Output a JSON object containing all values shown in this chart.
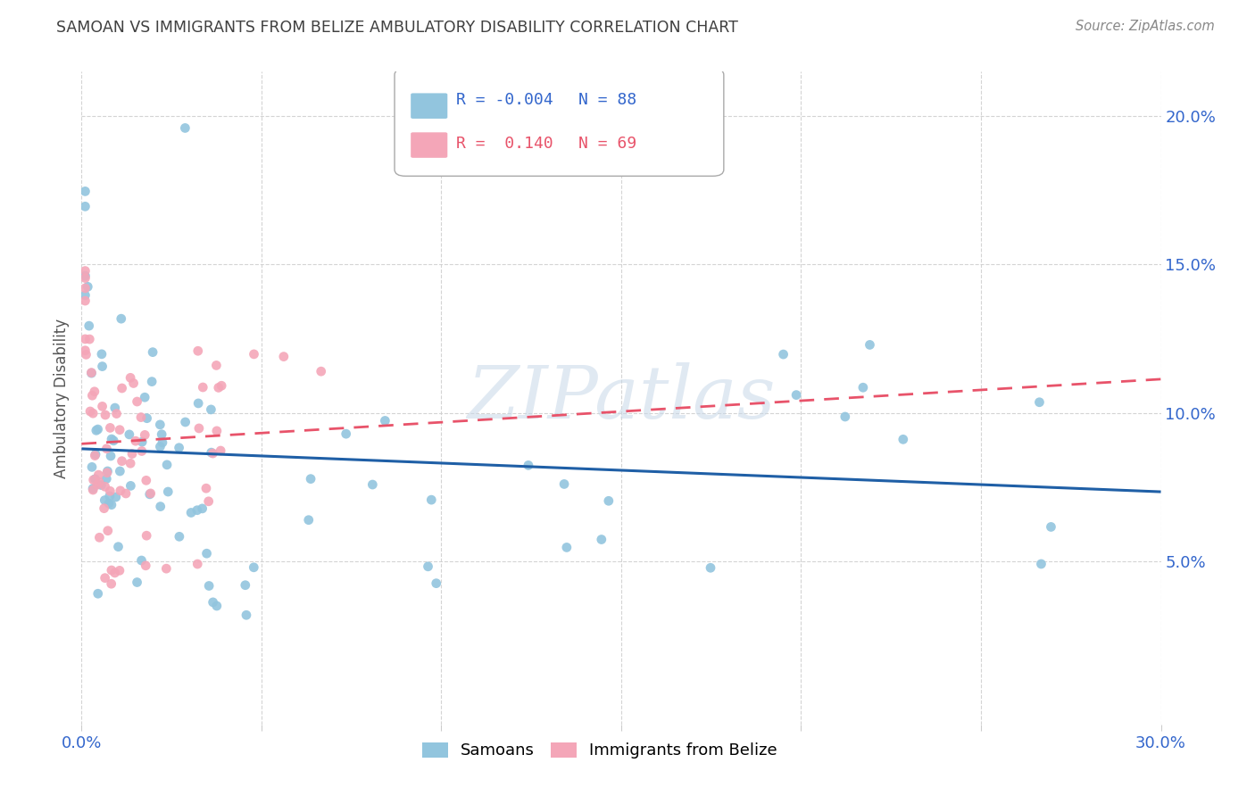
{
  "title": "SAMOAN VS IMMIGRANTS FROM BELIZE AMBULATORY DISABILITY CORRELATION CHART",
  "source": "Source: ZipAtlas.com",
  "ylabel": "Ambulatory Disability",
  "xlim": [
    0.0,
    0.3
  ],
  "ylim": [
    -0.005,
    0.215
  ],
  "y_ticks": [
    0.05,
    0.1,
    0.15,
    0.2
  ],
  "y_tick_labels": [
    "5.0%",
    "10.0%",
    "15.0%",
    "20.0%"
  ],
  "x_ticks": [
    0.0,
    0.05,
    0.1,
    0.15,
    0.2,
    0.25,
    0.3
  ],
  "x_tick_labels": [
    "0.0%",
    "",
    "",
    "",
    "",
    "",
    "30.0%"
  ],
  "color_samoans": "#92c5de",
  "color_belize": "#f4a6b8",
  "color_reg_samoans": "#1f5fa6",
  "color_reg_belize": "#e8536a",
  "watermark": "ZIPatlas",
  "title_color": "#404040",
  "source_color": "#888888",
  "tick_color": "#3366cc",
  "grid_color": "#d0d0d0",
  "legend_edge_color": "#aaaaaa",
  "R1": "-0.004",
  "N1": "88",
  "R2": "0.140",
  "N2": "69",
  "label_samoans": "Samoans",
  "label_belize": "Immigrants from Belize"
}
